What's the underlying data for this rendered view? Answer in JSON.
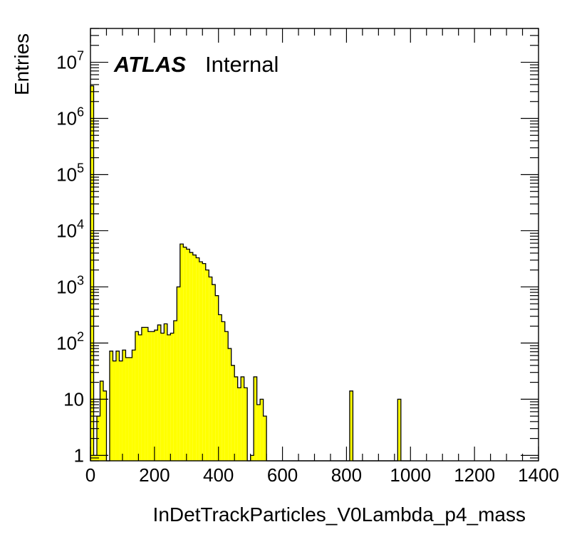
{
  "chart_data": {
    "type": "bar",
    "xlabel": "InDetTrackParticles_V0Lambda_p4_mass",
    "ylabel": "Entries",
    "xlim": [
      0,
      1400
    ],
    "ylim": [
      0.8,
      40000000
    ],
    "y_scale": "log",
    "bin_width": 10,
    "fill_color": "#ffff00",
    "line_color": "#000000",
    "x_ticks": [
      "0",
      "200",
      "400",
      "600",
      "800",
      "1000",
      "1200",
      "1400"
    ],
    "y_ticks": [
      {
        "base": "1",
        "exp": ""
      },
      {
        "base": "10",
        "exp": ""
      },
      {
        "base": "10",
        "exp": "2"
      },
      {
        "base": "10",
        "exp": "3"
      },
      {
        "base": "10",
        "exp": "4"
      },
      {
        "base": "10",
        "exp": "5"
      },
      {
        "base": "10",
        "exp": "6"
      },
      {
        "base": "10",
        "exp": "7"
      }
    ],
    "bins_x": [
      0,
      10,
      20,
      30,
      40,
      50,
      60,
      70,
      80,
      90,
      100,
      110,
      120,
      130,
      140,
      150,
      160,
      170,
      180,
      190,
      200,
      210,
      220,
      230,
      240,
      250,
      260,
      270,
      280,
      290,
      300,
      310,
      320,
      330,
      340,
      350,
      360,
      370,
      380,
      390,
      400,
      410,
      420,
      430,
      440,
      450,
      460,
      470,
      480,
      490,
      500,
      510,
      520,
      530,
      540,
      550,
      560,
      570,
      580,
      590,
      600,
      610,
      620,
      630,
      640,
      650,
      660,
      670,
      680,
      690,
      700,
      710,
      720,
      730,
      740,
      750,
      760,
      770,
      780,
      790,
      800,
      810,
      820,
      830,
      840,
      850,
      860,
      870,
      880,
      890,
      900,
      910,
      920,
      930,
      940,
      950,
      960,
      970,
      980,
      990
    ],
    "values": [
      3800000,
      1,
      5,
      21,
      14,
      0,
      72,
      48,
      72,
      48,
      75,
      55,
      55,
      75,
      160,
      140,
      190,
      190,
      160,
      160,
      170,
      210,
      150,
      220,
      140,
      150,
      250,
      1000,
      5800,
      5100,
      4700,
      4100,
      3700,
      3300,
      2800,
      2600,
      2000,
      1500,
      1100,
      700,
      320,
      240,
      160,
      80,
      40,
      25,
      16,
      25,
      16,
      0,
      1,
      25,
      8,
      10,
      5,
      0,
      0,
      0,
      0,
      0,
      0,
      0,
      0,
      0,
      0,
      0,
      0,
      0,
      0,
      0,
      0,
      0,
      0,
      0,
      0,
      0,
      0,
      0,
      0,
      0,
      0,
      14,
      0,
      0,
      0,
      0,
      0,
      0,
      0,
      0,
      0,
      0,
      0,
      0,
      0,
      0,
      10,
      0,
      0,
      0
    ],
    "annotation": {
      "main": "ATLAS",
      "sub": "Internal"
    },
    "grid": false,
    "legend": "none"
  }
}
